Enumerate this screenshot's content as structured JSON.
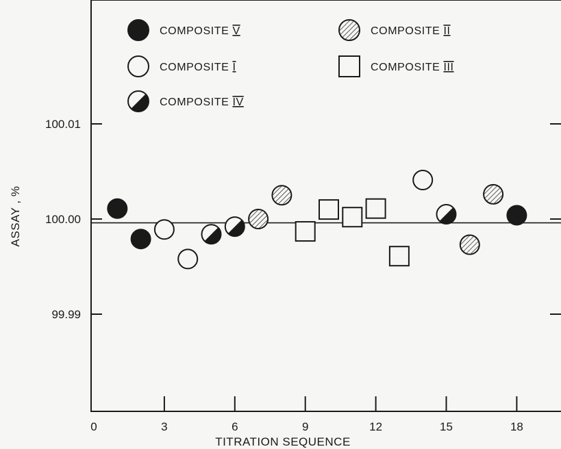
{
  "chart_data": {
    "type": "scatter",
    "title": "",
    "xlabel": "TITRATION SEQUENCE",
    "ylabel": "ASSAY , %",
    "xlim": [
      0,
      20
    ],
    "ylim": [
      99.98,
      100.02
    ],
    "xticks": [
      0,
      3,
      6,
      9,
      12,
      15,
      18
    ],
    "yticks": [
      99.99,
      100.0,
      100.01
    ],
    "ytick_labels": [
      "99.99",
      "100.00",
      "100.01"
    ],
    "grid": false,
    "legend_position": "top",
    "reference_line": 99.9996,
    "series": [
      {
        "name": "COMPOSITE V",
        "marker": "filled-circle",
        "points": [
          [
            1,
            100.0011
          ],
          [
            2,
            99.9979
          ],
          [
            18,
            100.0004
          ]
        ]
      },
      {
        "name": "COMPOSITE I",
        "marker": "open-circle",
        "points": [
          [
            3,
            99.9989
          ],
          [
            4,
            99.9958
          ],
          [
            14,
            100.0041
          ]
        ]
      },
      {
        "name": "COMPOSITE IV",
        "marker": "half-filled-circle",
        "points": [
          [
            5,
            99.9984
          ],
          [
            6,
            99.9992
          ],
          [
            15,
            100.0005
          ]
        ]
      },
      {
        "name": "COMPOSITE II",
        "marker": "hatched-circle",
        "points": [
          [
            7,
            100.0
          ],
          [
            8,
            100.0025
          ],
          [
            16,
            99.9973
          ],
          [
            17,
            100.0026
          ]
        ]
      },
      {
        "name": "COMPOSITE III",
        "marker": "open-square",
        "points": [
          [
            9,
            99.9987
          ],
          [
            10,
            100.001
          ],
          [
            11,
            100.0002
          ],
          [
            12,
            100.0011
          ],
          [
            13,
            99.9961
          ]
        ]
      }
    ]
  },
  "legend": [
    {
      "label": "COMPOSITE",
      "numeral": "V",
      "marker": "filled-circle"
    },
    {
      "label": "COMPOSITE",
      "numeral": "II",
      "marker": "hatched-circle"
    },
    {
      "label": "COMPOSITE",
      "numeral": "I",
      "marker": "open-circle"
    },
    {
      "label": "COMPOSITE",
      "numeral": "III",
      "marker": "open-square"
    },
    {
      "label": "COMPOSITE",
      "numeral": "IV",
      "marker": "half-filled-circle"
    }
  ],
  "colors": {
    "ink": "#1a1a1a",
    "background": "#f6f6f4"
  }
}
